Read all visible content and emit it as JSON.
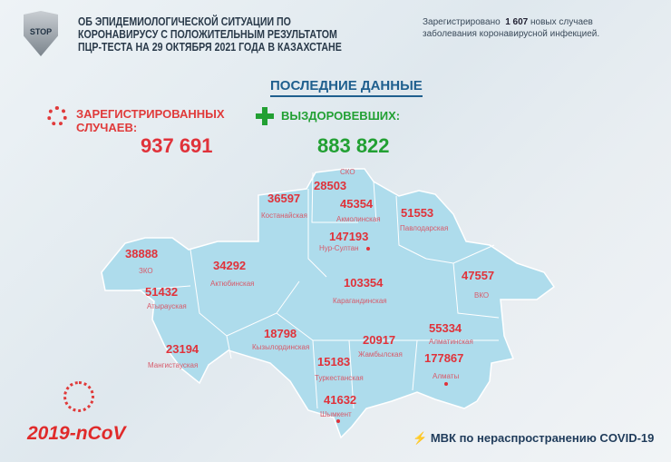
{
  "header": {
    "logo_text": "STOP",
    "title_lines": [
      "ОБ ЭПИДЕМИОЛОГИЧЕСКОЙ СИТУАЦИИ ПО",
      "КОРОНАВИРУСУ С ПОЛОЖИТЕЛЬНЫМ РЕЗУЛЬТАТОМ",
      "ПЦР-ТЕСТА НА 29 ОКТЯБРЯ 2021 ГОДА В КАЗАХСТАНЕ"
    ],
    "note_prefix": "Зарегистрировано",
    "note_count": "1 607",
    "note_suffix": "новых случаев",
    "note_line2": "заболевания коронавирусной инфекцией."
  },
  "subtitle": "ПОСЛЕДНИЕ ДАННЫЕ",
  "stats": {
    "registered_line1": "ЗАРЕГИСТРИРОВАННЫХ",
    "registered_line2": "СЛУЧАЕВ:",
    "registered_value": "937 691",
    "recovered_label": "ВЫЗДОРОВЕВШИХ:",
    "recovered_value": "883 822"
  },
  "colors": {
    "red": "#e0323a",
    "green": "#22a033",
    "map": "#aedcec",
    "title_blue": "#1f5f8e"
  },
  "regions": [
    {
      "name": "СКО",
      "value": "28503"
    },
    {
      "name": "Костанайская",
      "value": "36597"
    },
    {
      "name": "Акмолинская",
      "value": "45354"
    },
    {
      "name": "Павлодарская",
      "value": "51553"
    },
    {
      "name": "Нур-Султан",
      "value": "147193"
    },
    {
      "name": "ЗКО",
      "value": "38888"
    },
    {
      "name": "Актюбинская",
      "value": "34292"
    },
    {
      "name": "Карагандинская",
      "value": "103354"
    },
    {
      "name": "ВКО",
      "value": "47557"
    },
    {
      "name": "Атырауская",
      "value": "51432"
    },
    {
      "name": "Кызылординская",
      "value": "18798"
    },
    {
      "name": "Жамбылская",
      "value": "20917"
    },
    {
      "name": "Алматинская",
      "value": "55334"
    },
    {
      "name": "Мангистауская",
      "value": "23194"
    },
    {
      "name": "Туркестанская",
      "value": "15183"
    },
    {
      "name": "Алматы",
      "value": "177867"
    },
    {
      "name": "Шымкент",
      "value": "41632"
    }
  ],
  "footer": {
    "left": "2019-nCoV",
    "right": "МВК по нераспространению COVID-19"
  }
}
